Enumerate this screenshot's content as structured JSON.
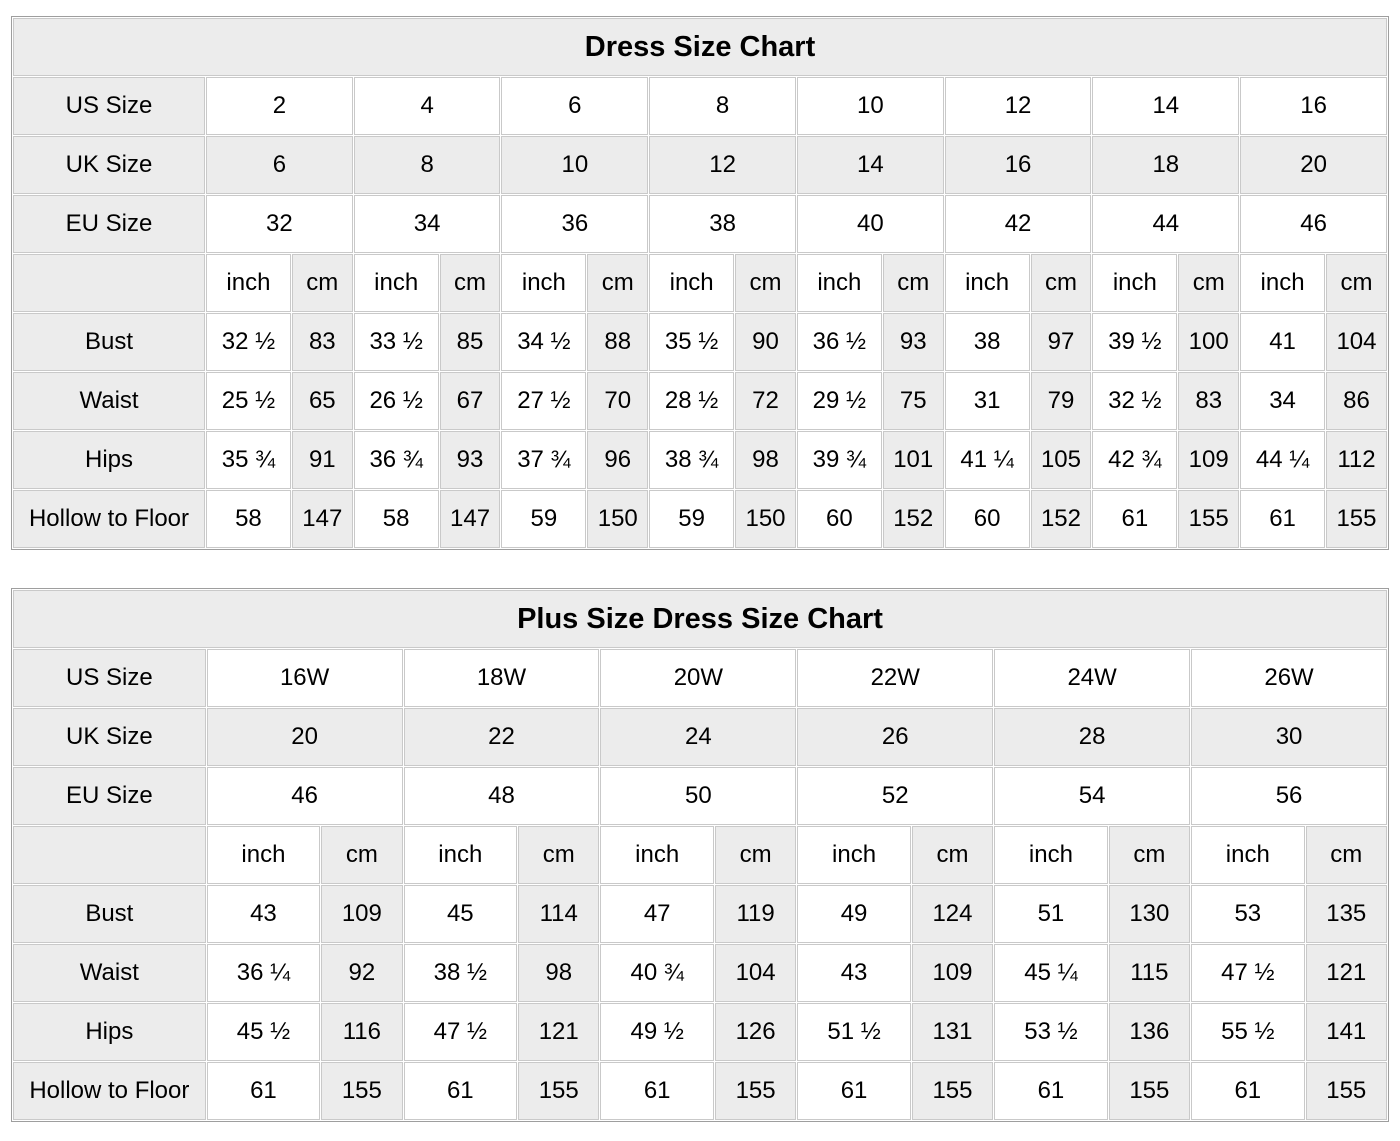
{
  "units": {
    "inch": "inch",
    "cm": "cm"
  },
  "colors": {
    "cell_gray": "#ececec",
    "cell_white": "#ffffff",
    "inner_border": "#c9c9c9",
    "outer_border": "#9e9e9e",
    "text": "#000000",
    "page_background": "#ffffff"
  },
  "chart_data": [
    {
      "type": "table",
      "title": "Dress Size Chart",
      "size_rows": [
        {
          "label": "US Size",
          "values": [
            "2",
            "4",
            "6",
            "8",
            "10",
            "12",
            "14",
            "16"
          ]
        },
        {
          "label": "UK Size",
          "values": [
            "6",
            "8",
            "10",
            "12",
            "14",
            "16",
            "18",
            "20"
          ]
        },
        {
          "label": "EU Size",
          "values": [
            "32",
            "34",
            "36",
            "38",
            "40",
            "42",
            "44",
            "46"
          ]
        }
      ],
      "measure_rows": [
        {
          "label": "Bust",
          "inch": [
            "32 ½",
            "33 ½",
            "34 ½",
            "35 ½",
            "36 ½",
            "38",
            "39 ½",
            "41"
          ],
          "cm": [
            "83",
            "85",
            "88",
            "90",
            "93",
            "97",
            "100",
            "104"
          ]
        },
        {
          "label": "Waist",
          "inch": [
            "25 ½",
            "26 ½",
            "27 ½",
            "28 ½",
            "29 ½",
            "31",
            "32 ½",
            "34"
          ],
          "cm": [
            "65",
            "67",
            "70",
            "72",
            "75",
            "79",
            "83",
            "86"
          ]
        },
        {
          "label": "Hips",
          "inch": [
            "35 ¾",
            "36 ¾",
            "37 ¾",
            "38 ¾",
            "39 ¾",
            "41 ¼",
            "42 ¾",
            "44 ¼"
          ],
          "cm": [
            "91",
            "93",
            "96",
            "98",
            "101",
            "105",
            "109",
            "112"
          ]
        },
        {
          "label": "Hollow to Floor",
          "inch": [
            "58",
            "58",
            "59",
            "59",
            "60",
            "60",
            "61",
            "61"
          ],
          "cm": [
            "147",
            "147",
            "150",
            "150",
            "152",
            "152",
            "155",
            "155"
          ]
        }
      ]
    },
    {
      "type": "table",
      "title": "Plus Size Dress Size Chart",
      "size_rows": [
        {
          "label": "US Size",
          "values": [
            "16W",
            "18W",
            "20W",
            "22W",
            "24W",
            "26W"
          ]
        },
        {
          "label": "UK Size",
          "values": [
            "20",
            "22",
            "24",
            "26",
            "28",
            "30"
          ]
        },
        {
          "label": "EU Size",
          "values": [
            "46",
            "48",
            "50",
            "52",
            "54",
            "56"
          ]
        }
      ],
      "measure_rows": [
        {
          "label": "Bust",
          "inch": [
            "43",
            "45",
            "47",
            "49",
            "51",
            "53"
          ],
          "cm": [
            "109",
            "114",
            "119",
            "124",
            "130",
            "135"
          ]
        },
        {
          "label": "Waist",
          "inch": [
            "36 ¼",
            "38 ½",
            "40 ¾",
            "43",
            "45 ¼",
            "47 ½"
          ],
          "cm": [
            "92",
            "98",
            "104",
            "109",
            "115",
            "121"
          ]
        },
        {
          "label": "Hips",
          "inch": [
            "45 ½",
            "47 ½",
            "49 ½",
            "51 ½",
            "53 ½",
            "55 ½"
          ],
          "cm": [
            "116",
            "121",
            "126",
            "131",
            "136",
            "141"
          ]
        },
        {
          "label": "Hollow to Floor",
          "inch": [
            "61",
            "61",
            "61",
            "61",
            "61",
            "61"
          ],
          "cm": [
            "155",
            "155",
            "155",
            "155",
            "155",
            "155"
          ]
        }
      ]
    }
  ]
}
